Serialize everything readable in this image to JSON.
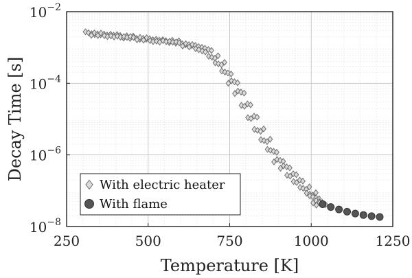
{
  "chart_data": {
    "type": "scatter",
    "title": "",
    "xlabel": "Temperature [K]",
    "ylabel": "Decay Time [s]",
    "xlim": [
      250,
      1250
    ],
    "ylim": [
      1e-08,
      0.01
    ],
    "yscale": "log",
    "grid": true,
    "minor_grid": true,
    "legend": "bottom-left",
    "x_ticks": [
      250,
      500,
      750,
      1000,
      1250
    ],
    "x_tick_labels": [
      "250",
      "500",
      "750",
      "1000",
      "1250"
    ],
    "y_ticks": [
      1e-08,
      1e-06,
      0.0001,
      0.01
    ],
    "y_tick_labels": [
      {
        "base": "10",
        "exp": "−8"
      },
      {
        "base": "10",
        "exp": "−6"
      },
      {
        "base": "10",
        "exp": "−4"
      },
      {
        "base": "10",
        "exp": "−2"
      }
    ],
    "series": [
      {
        "name": "With electric heater",
        "marker": "diamond",
        "color": "#dcdcdc",
        "edge_color": "#6e6e6e",
        "x": [
          322,
          340,
          360,
          380,
          400,
          420,
          440,
          460,
          480,
          500,
          520,
          540,
          560,
          580,
          600,
          620,
          640,
          660,
          680,
          700,
          720,
          740,
          760,
          780,
          800,
          820,
          840,
          860,
          880,
          900,
          920,
          940,
          960,
          980,
          1000,
          1010,
          1020,
          1030
        ],
        "y": [
          0.0025,
          0.0024,
          0.0023,
          0.0022,
          0.0021,
          0.002,
          0.0019,
          0.00185,
          0.0018,
          0.0017,
          0.0016,
          0.0015,
          0.0015,
          0.0014,
          0.0013,
          0.0012,
          0.0011,
          0.00095,
          0.0008,
          0.00055,
          0.00035,
          0.0002,
          0.00011,
          5.5e-05,
          2.5e-05,
          1.1e-05,
          5e-06,
          2.5e-06,
          1.3e-06,
          7e-07,
          4.5e-07,
          2.8e-07,
          1.8e-07,
          1.2e-07,
          8e-08,
          6.5e-08,
          5e-08,
          4.2e-08
        ]
      },
      {
        "name": "With flame",
        "marker": "circle",
        "color": "#555555",
        "edge_color": "#333333",
        "x": [
          1035,
          1060,
          1085,
          1110,
          1135,
          1160,
          1185,
          1210
        ],
        "y": [
          4.2e-08,
          3.5e-08,
          3e-08,
          2.6e-08,
          2.3e-08,
          2.1e-08,
          1.95e-08,
          1.85e-08
        ]
      }
    ]
  }
}
